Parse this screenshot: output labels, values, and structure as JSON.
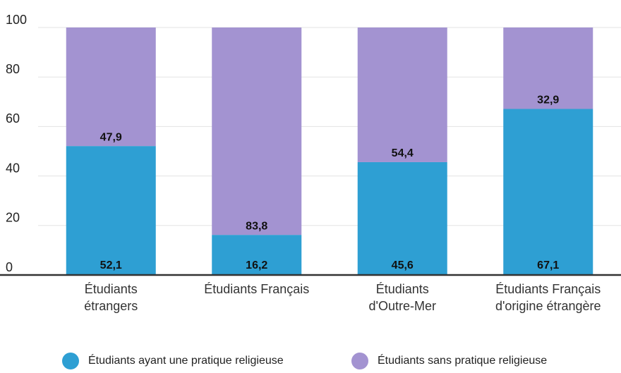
{
  "chart_data": {
    "type": "stacked_bar",
    "categories": [
      "Étudiants\nétrangers",
      "Étudiants Français",
      "Étudiants\nd'Outre-Mer",
      "Étudiants Français\nd'origine étrangère"
    ],
    "series": [
      {
        "name": "Étudiants ayant une pratique religieuse",
        "color": "#2e9fd3",
        "values": [
          52.1,
          16.2,
          45.6,
          67.1
        ],
        "value_labels": [
          "52,1",
          "16,2",
          "45,6",
          "67,1"
        ]
      },
      {
        "name": "Étudiants sans pratique religieuse",
        "color": "#a393d1",
        "values": [
          47.9,
          83.8,
          54.4,
          32.9
        ],
        "value_labels": [
          "47,9",
          "83,8",
          "54,4",
          "32,9"
        ]
      }
    ],
    "ylim": [
      0,
      100
    ],
    "yticks": [
      0,
      20,
      40,
      60,
      80,
      100
    ],
    "grid": true,
    "legend": "bottom"
  }
}
